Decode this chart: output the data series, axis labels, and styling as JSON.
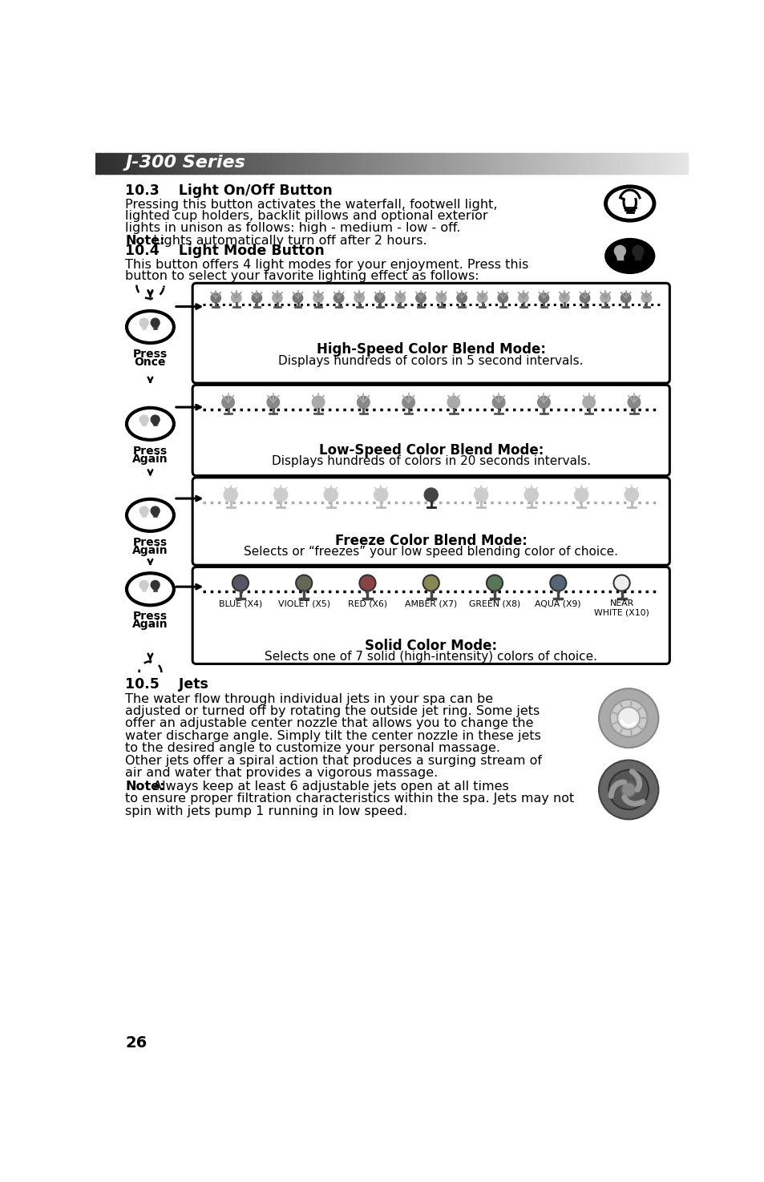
{
  "title_bar": "J-300 Series",
  "section_10_3_title": "10.3    Light On/Off Button",
  "section_10_3_lines": [
    "Pressing this button activates the waterfall, footwell light,",
    "lighted cup holders, backlit pillows and optional exterior",
    "lights in unison as follows: high - medium - low - off."
  ],
  "section_10_3_note_bold": "Note:",
  "section_10_3_note_rest": " Lights automatically turn off after 2 hours.",
  "section_10_4_title": "10.4    Light Mode Button",
  "section_10_4_lines": [
    "This button offers 4 light modes for your enjoyment. Press this",
    "button to select your favorite lighting effect as follows:"
  ],
  "mode1_title": "High-Speed Color Blend Mode:",
  "mode1_desc": "Displays hundreds of colors in 5 second intervals.",
  "mode2_title": "Low-Speed Color Blend Mode:",
  "mode2_desc": "Displays hundreds of colors in 20 seconds intervals.",
  "mode3_title": "Freeze Color Blend Mode:",
  "mode3_desc": "Selects or “freezes” your low speed blending color of choice.",
  "mode4_title": "Solid Color Mode:",
  "mode4_desc": "Selects one of 7 solid (high-intensity) colors of choice.",
  "color_labels": [
    "BLUE (X4)",
    "VIOLET (X5)",
    "RED (X6)",
    "AMBER (X7)",
    "GREEN (X8)",
    "AQUA (X9)",
    "NEAR\nWHITE (X10)"
  ],
  "color_shades": [
    "#555566",
    "#666655",
    "#884444",
    "#888855",
    "#557755",
    "#556677",
    "#eeeeee"
  ],
  "section_10_5_title": "10.5    Jets",
  "section_10_5_lines": [
    "The water flow through individual jets in your spa can be",
    "adjusted or turned off by rotating the outside jet ring. Some jets",
    "offer an adjustable center nozzle that allows you to change the",
    "water discharge angle. Simply tilt the center nozzle in these jets",
    "to the desired angle to customize your personal massage.",
    "Other jets offer a spiral action that produces a surging stream of",
    "air and water that provides a vigorous massage."
  ],
  "section_10_5_note_bold": "Note:",
  "section_10_5_note_lines": [
    " Always keep at least 6 adjustable jets open at all times",
    "to ensure proper filtration characteristics within the spa. Jets may not",
    "spin with jets pump 1 running in low speed."
  ],
  "page_number": "26",
  "bg_color": "#ffffff"
}
